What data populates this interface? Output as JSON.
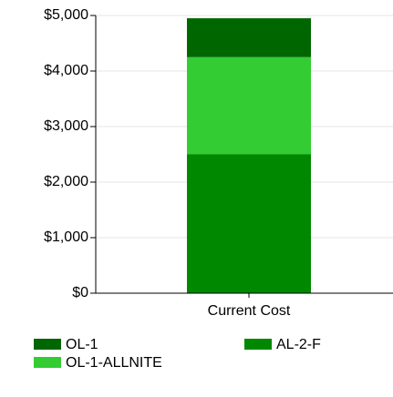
{
  "chart_data": {
    "type": "stacked_bar",
    "categories": [
      "Current Cost"
    ],
    "series": [
      {
        "name": "AL-2-F",
        "color": "#008800",
        "values": [
          2500
        ]
      },
      {
        "name": "OL-1-ALLNITE",
        "color": "#33cc33",
        "values": [
          1750
        ]
      },
      {
        "name": "OL-1",
        "color": "#006600",
        "values": [
          700
        ]
      }
    ],
    "ylim": [
      0,
      5000
    ],
    "yticks": [
      {
        "value": 0,
        "label": "$0"
      },
      {
        "value": 1000,
        "label": "$1,000"
      },
      {
        "value": 2000,
        "label": "$2,000"
      },
      {
        "value": 3000,
        "label": "$3,000"
      },
      {
        "value": 4000,
        "label": "$4,000"
      },
      {
        "value": 5000,
        "label": "$5,000"
      }
    ],
    "grid": true
  }
}
